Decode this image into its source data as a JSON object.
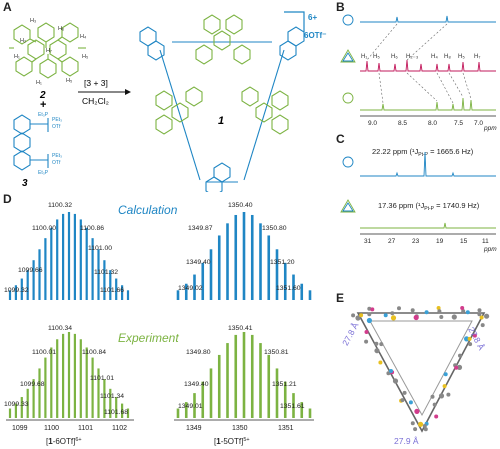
{
  "panels": {
    "A": {
      "label": "A",
      "compound2": "2",
      "compound3": "3",
      "compound1": "1",
      "plus": "+",
      "reaction_top": "[3 + 3]",
      "reaction_bottom": "CH₂Cl₂",
      "charge": "6+",
      "counterion": "6OTf⁻",
      "proton_labels": [
        "H₃",
        "H₂",
        "H₄",
        "H₅",
        "H₁",
        "H₆",
        "H₇",
        "H₅",
        "H₁"
      ],
      "ligand_labels": [
        "Et₃P",
        "PEt₃",
        "OTf",
        "PEt₃",
        "OTf",
        "Et₃P"
      ],
      "colors": {
        "blue": "#1f86c4",
        "green": "#7cb342"
      }
    },
    "B": {
      "label": "B",
      "peak_labels": [
        "H₁",
        "H₅",
        "H₆",
        "H₂₋₃",
        "H₄",
        "H₈",
        "H₅",
        "H₇"
      ],
      "axis_ticks": [
        "9.0",
        "8.5",
        "8.0",
        "7.5",
        "7.0"
      ],
      "axis_unit": "ppm"
    },
    "C": {
      "label": "C",
      "shift1": "22.22 ppm (¹J",
      "shift1_sub": "Pt-P",
      "shift1_tail": " = 1665.6 Hz)",
      "shift2": "17.36 ppm (¹J",
      "shift2_sub": "Pt-P",
      "shift2_tail": " = 1740.9 Hz)",
      "axis_ticks": [
        "31",
        "27",
        "23",
        "19",
        "15",
        "11"
      ],
      "axis_unit": "ppm"
    },
    "D": {
      "label": "D",
      "calc_title": "Calculation",
      "exp_title": "Experiment",
      "calc_left_peaks": [
        "1100.32",
        "1100.00",
        "1100.86",
        "1101.00",
        "1099.66",
        "1101.32",
        "1099.32",
        "1101.66"
      ],
      "calc_right_peaks": [
        "1350.40",
        "1349.87",
        "1350.80",
        "1349.40",
        "1351.20",
        "1349.02",
        "1351.60"
      ],
      "exp_left_peaks": [
        "1100.34",
        "1100.01",
        "1100.84",
        "1099.68",
        "1101.01",
        "1101.34",
        "1099.33",
        "1101.68"
      ],
      "exp_right_peaks": [
        "1350.41",
        "1349.80",
        "1350.81",
        "1349.40",
        "1351.21",
        "1349.01",
        "1351.61"
      ],
      "left_ticks": [
        "1099",
        "1100",
        "1101",
        "1102"
      ],
      "right_ticks": [
        "1349",
        "1350",
        "1351"
      ],
      "left_caption_pre": "[",
      "left_caption_bold": "1",
      "left_caption_post": "-6OTf]",
      "left_caption_sup": "6+",
      "right_caption_pre": "[",
      "right_caption_bold": "1",
      "right_caption_post": "-5OTf]",
      "right_caption_sup": "5+"
    },
    "E": {
      "label": "E",
      "dist_left": "27.8 Å",
      "dist_right": "27.8 Å",
      "dist_bottom": "27.9 Å"
    }
  }
}
